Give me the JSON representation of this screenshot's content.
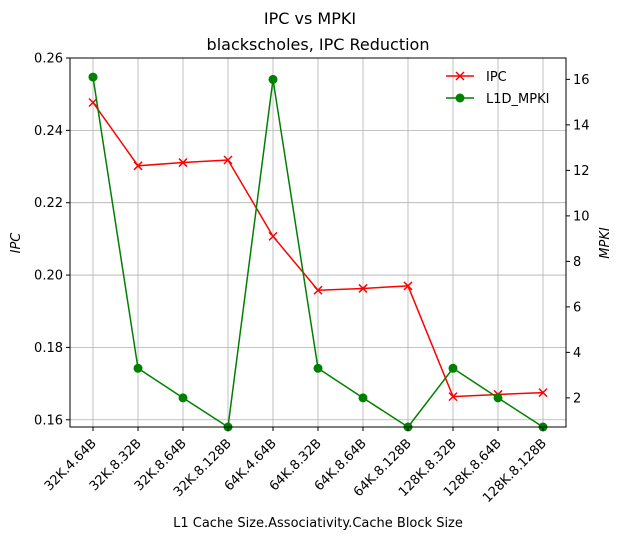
{
  "chart_data": {
    "type": "line",
    "suptitle": "IPC vs MPKI",
    "title": "blackscholes, IPC Reduction",
    "xlabel": "L1 Cache Size.Associativity.Cache Block Size",
    "ylabel_left": "IPC",
    "ylabel_right": "MPKI",
    "categories": [
      "32K.4.64B",
      "32K.8.32B",
      "32K.8.64B",
      "32K.8.128B",
      "64K.4.64B",
      "64K.8.32B",
      "64K.8.64B",
      "64K.8.128B",
      "128K.8.32B",
      "128K.8.64B",
      "128K.8.128B"
    ],
    "ylim_left": [
      0.158,
      0.26
    ],
    "yticks_left": [
      "0.16",
      "0.18",
      "0.20",
      "0.22",
      "0.24",
      "0.26"
    ],
    "ylim_right": [
      0.72,
      16.94
    ],
    "yticks_right": [
      "2",
      "4",
      "6",
      "8",
      "10",
      "12",
      "14",
      "16"
    ],
    "grid": true,
    "legend_position": "top-right",
    "series": [
      {
        "name": "IPC",
        "axis": "left",
        "color": "#ff0000",
        "marker": "x",
        "values": [
          0.2477,
          0.2302,
          0.2311,
          0.2318,
          0.2107,
          0.1958,
          0.1963,
          0.197,
          0.1664,
          0.167,
          0.1675
        ]
      },
      {
        "name": "L1D_MPKI",
        "axis": "right",
        "color": "#008000",
        "marker": "o",
        "values": [
          16.1,
          3.3,
          2.0,
          0.72,
          16.0,
          3.3,
          2.0,
          0.72,
          3.3,
          2.0,
          0.72
        ]
      }
    ]
  }
}
